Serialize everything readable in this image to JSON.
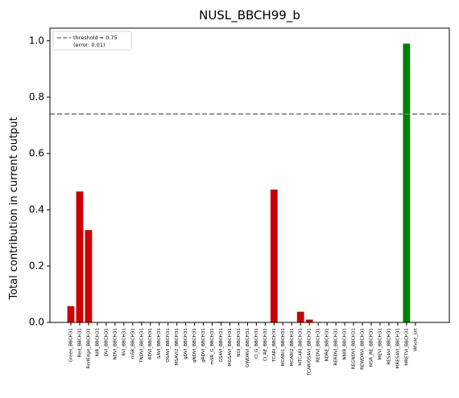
{
  "chart_data": {
    "type": "bar",
    "title": "NUSL_BBCH99_b",
    "xlabel": "",
    "ylabel": "Total contribution in current output",
    "ylim": [
      0,
      1.0
    ],
    "yticks": [
      "0.0",
      "0.2",
      "0.4",
      "0.6",
      "0.8",
      "1.0"
    ],
    "grid": false,
    "legend_position": "top-left",
    "legend": {
      "line1": "threshold = 0.75",
      "line2": "(error: 0.01)"
    },
    "threshold": 0.74,
    "colors": {
      "below": "#cc0000",
      "above": "#008000",
      "threshold": "#808080"
    },
    "categories": [
      "Green_BBCH31",
      "Red_BBCH31",
      "RedEdge_BBCH31",
      "NIR_BBCH31",
      "DVI_BBCH31",
      "NDVI_BBCH31",
      "RVI_BBCH31",
      "mSR_BBCH31",
      "TNDVI_BBCH31",
      "RDVI_BBCH31",
      "SAVI_BBCH31",
      "OSAVI_BBCH31",
      "MSAVI2_BBCH31",
      "gDVI_BBCH31",
      "gNDVI_BBCH31",
      "gRDVI_BBCH31",
      "mSR_G_BBCH31",
      "GSAVI_BBCH31",
      "MGSAVI_BBCH31",
      "NGI_BBCH31",
      "GWDRVI_BBCH31",
      "CI_G_BBCH31",
      "CI_RE_BBCH31",
      "TCARI_BBCH31",
      "MCARI1_BBCH31",
      "MCARI2_BBCH31",
      "MTCARI_BBCH31",
      "TCARIOSAVI_BBCH31",
      "REDVI_BBCH31",
      "NDRE_BBCH31",
      "RERDVI_BBCH31",
      "NNIR_BBCH31",
      "REGNDVI_BBCH31",
      "REWDRVI_BBCH31",
      "MSR_RE_BBCH31",
      "MEVI_BBCH31",
      "RESAVI_BBCH31",
      "MRESAVI_BBCH31",
      "MRETVI_BBCH31",
      "Whole_set"
    ],
    "values": [
      0.058,
      0.465,
      0.328,
      0,
      0,
      0,
      0,
      0,
      0.002,
      0,
      0,
      0,
      0,
      0,
      0,
      0,
      0,
      0.002,
      0,
      0,
      0,
      0,
      0,
      0.472,
      0,
      0,
      0.038,
      0.01,
      0,
      0,
      0,
      0,
      0,
      0,
      0,
      0,
      0,
      0,
      0.99,
      0
    ]
  }
}
